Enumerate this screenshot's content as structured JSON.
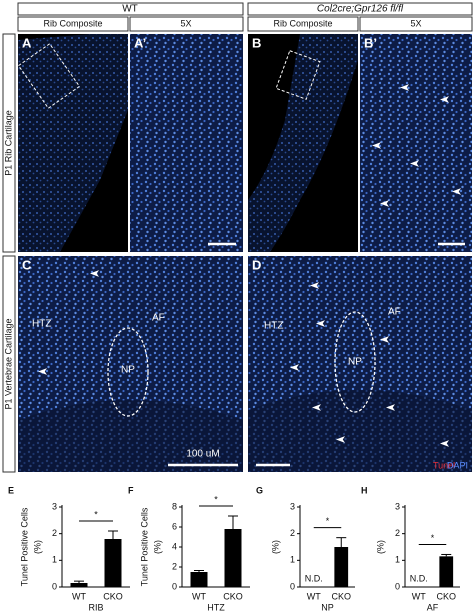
{
  "header": {
    "wt": "WT",
    "cko": "Col2cre;Gpr126 fl/fl"
  },
  "columns": [
    "Rib Composite",
    "5X",
    "Rib Composite",
    "5X"
  ],
  "rows": [
    "P1 Rib Cartilage",
    "P1 Vertebrae Cartilage"
  ],
  "panels": {
    "a": "A",
    "a2": "A’",
    "b": "B",
    "b2": "B’",
    "c": "C",
    "d": "D"
  },
  "regions": {
    "c": [
      "HTZ",
      "AF",
      "NP"
    ],
    "d": [
      "HTZ",
      "AF",
      "NP"
    ]
  },
  "scale_bar": "100 uM",
  "stain": [
    "Tunel",
    "DAPI"
  ],
  "chart_data": [
    {
      "type": "bar",
      "panel": "E",
      "ylabel": [
        "Tunel Positive Cells",
        "(%)"
      ],
      "xlabel": "RIB",
      "categories": [
        "WT",
        "CKO"
      ],
      "values": [
        0.15,
        1.8
      ],
      "errors": [
        0.07,
        0.3
      ],
      "color": "#000000",
      "ylim": [
        0,
        3
      ],
      "yticks": [
        0,
        1,
        2,
        3
      ],
      "annotation": "*"
    },
    {
      "type": "bar",
      "panel": "F",
      "ylabel": [
        "Tunel Positive Cells",
        "(%)"
      ],
      "xlabel": "HTZ",
      "categories": [
        "WT",
        "CKO"
      ],
      "values": [
        1.5,
        5.8
      ],
      "errors": [
        0.15,
        1.3
      ],
      "color": "#000000",
      "ylim": [
        0,
        8
      ],
      "yticks": [
        0,
        2,
        4,
        6,
        8
      ],
      "annotation": "*"
    },
    {
      "type": "bar",
      "panel": "G",
      "ylabel": [
        "(%)"
      ],
      "xlabel": "NP",
      "categories": [
        "WT",
        "CKO"
      ],
      "values": [
        null,
        1.5
      ],
      "value_labels": [
        "N.D.",
        null
      ],
      "errors": [
        null,
        0.35
      ],
      "color": "#000000",
      "ylim": [
        0,
        3
      ],
      "yticks": [
        0,
        1,
        2,
        3
      ],
      "annotation": "*"
    },
    {
      "type": "bar",
      "panel": "H",
      "ylabel": [
        "(%)"
      ],
      "xlabel": "AF",
      "categories": [
        "WT",
        "CKO"
      ],
      "values": [
        null,
        1.15
      ],
      "value_labels": [
        "N.D.",
        null
      ],
      "errors": [
        null,
        0.07
      ],
      "color": "#000000",
      "ylim": [
        0,
        3
      ],
      "yticks": [
        0,
        1,
        2,
        3
      ],
      "annotation": "*"
    }
  ]
}
